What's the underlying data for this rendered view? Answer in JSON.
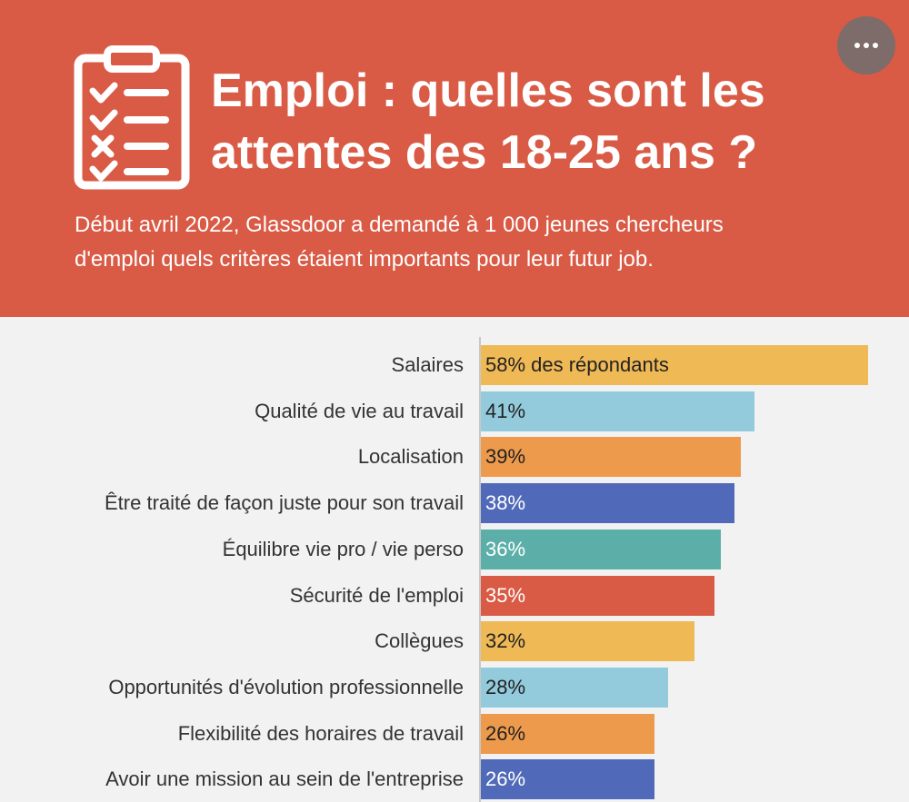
{
  "header": {
    "title_line1": "Emploi : quelles sont les",
    "title_line2": "attentes des 18-25 ans ?",
    "subtitle_line1": "Début avril 2022, Glassdoor a demandé à 1 000 jeunes chercheurs",
    "subtitle_line2": "d'emploi quels critères étaient importants pour leur futur job.",
    "icon": "clipboard-checklist-icon",
    "menu_icon": "more-horizontal-icon"
  },
  "colors": {
    "header_bg": "#d95a45",
    "page_bg": "#f2f2f2",
    "palette": [
      "#efb955",
      "#93cbdd",
      "#ee9a4c",
      "#506ab9",
      "#5cafa9",
      "#d95a45"
    ]
  },
  "chart_data": {
    "type": "bar",
    "orientation": "horizontal",
    "categories": [
      "Salaires",
      "Qualité de vie au travail",
      "Localisation",
      "Être traité de façon juste pour son travail",
      "Équilibre vie pro / vie perso",
      "Sécurité de l'emploi",
      "Collègues",
      "Opportunités d'évolution professionnelle",
      "Flexibilité des horaires de travail",
      "Avoir une mission au sein de l'entreprise"
    ],
    "values": [
      58,
      41,
      39,
      38,
      36,
      35,
      32,
      28,
      26,
      26
    ],
    "labels": [
      "58% des répondants",
      "41%",
      "39%",
      "38%",
      "36%",
      "35%",
      "32%",
      "28%",
      "26%",
      "26%"
    ],
    "colors": [
      "#efb955",
      "#93cbdd",
      "#ee9a4c",
      "#506ab9",
      "#5cafa9",
      "#d95a45",
      "#efb955",
      "#93cbdd",
      "#ee9a4c",
      "#506ab9"
    ],
    "label_colors": [
      "#222222",
      "#222222",
      "#222222",
      "#ffffff",
      "#ffffff",
      "#ffffff",
      "#222222",
      "#222222",
      "#222222",
      "#ffffff"
    ],
    "unit": "%",
    "grid": false
  }
}
